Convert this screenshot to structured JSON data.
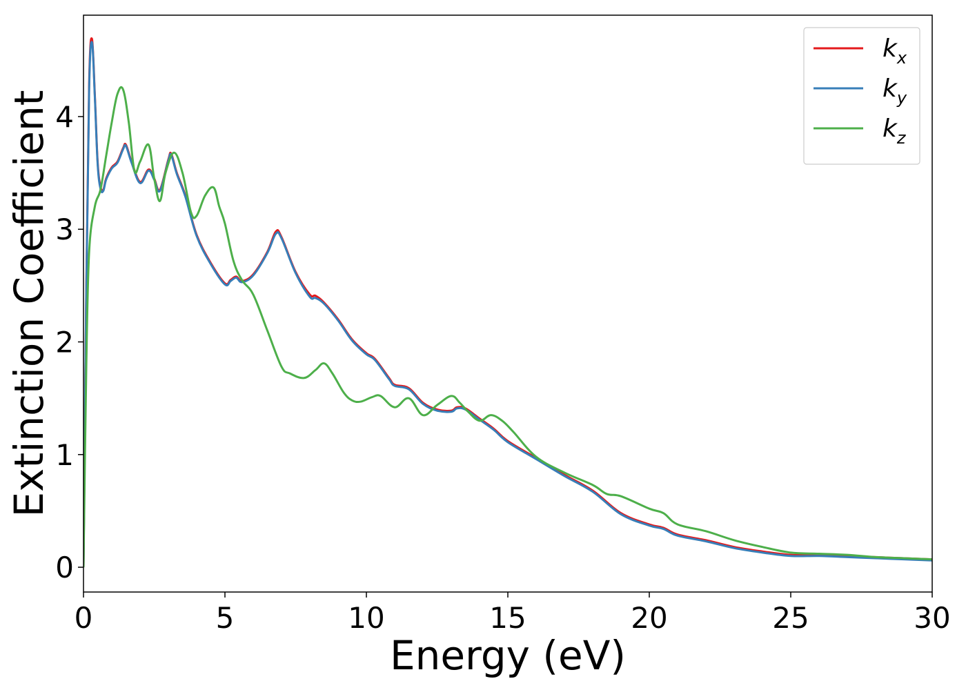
{
  "chart_data": {
    "type": "line",
    "xlabel": "Energy (eV)",
    "ylabel": "Extinction Coefficient",
    "xlim": [
      0,
      30
    ],
    "ylim": [
      -0.22,
      4.9
    ],
    "xticks": [
      0,
      5,
      10,
      15,
      20,
      25,
      30
    ],
    "xtick_labels": [
      "0",
      "5",
      "10",
      "15",
      "20",
      "25",
      "30"
    ],
    "yticks": [
      0,
      1,
      2,
      3,
      4
    ],
    "ytick_labels": [
      "0",
      "1",
      "2",
      "3",
      "4"
    ],
    "grid": false,
    "legend_position": "top-right",
    "series": [
      {
        "name": "k_x",
        "legend_main": "k",
        "legend_sub": "x",
        "color": "#e41a1c",
        "x": [
          0,
          0.1,
          0.2,
          0.3,
          0.4,
          0.5,
          0.6,
          0.7,
          0.8,
          1.0,
          1.2,
          1.4,
          1.5,
          1.7,
          2.0,
          2.3,
          2.5,
          2.7,
          3.0,
          3.1,
          3.3,
          3.6,
          4.0,
          4.5,
          5.0,
          5.2,
          5.4,
          5.6,
          6.0,
          6.5,
          6.8,
          7.0,
          7.5,
          8.0,
          8.2,
          8.5,
          9.0,
          9.5,
          10.0,
          10.3,
          10.8,
          11.0,
          11.5,
          12.0,
          12.5,
          13.0,
          13.2,
          13.5,
          14.0,
          14.5,
          15.0,
          16.0,
          17.0,
          18.0,
          19.0,
          20.0,
          20.5,
          21.0,
          22.0,
          23.0,
          24.0,
          25.0,
          26.0,
          27.0,
          28.0,
          29.0,
          30.0
        ],
        "y": [
          0,
          2.5,
          4.3,
          4.69,
          4.2,
          3.6,
          3.38,
          3.35,
          3.45,
          3.55,
          3.6,
          3.72,
          3.75,
          3.6,
          3.42,
          3.53,
          3.45,
          3.35,
          3.62,
          3.67,
          3.5,
          3.3,
          2.95,
          2.7,
          2.52,
          2.55,
          2.58,
          2.54,
          2.6,
          2.8,
          2.98,
          2.93,
          2.62,
          2.42,
          2.41,
          2.35,
          2.2,
          2.02,
          1.9,
          1.85,
          1.68,
          1.62,
          1.59,
          1.46,
          1.4,
          1.39,
          1.42,
          1.41,
          1.32,
          1.23,
          1.12,
          0.97,
          0.82,
          0.68,
          0.48,
          0.38,
          0.35,
          0.29,
          0.24,
          0.18,
          0.14,
          0.11,
          0.11,
          0.1,
          0.09,
          0.08,
          0.07
        ]
      },
      {
        "name": "k_y",
        "legend_main": "k",
        "legend_sub": "y",
        "color": "#377eb8",
        "x": [
          0,
          0.1,
          0.2,
          0.3,
          0.4,
          0.5,
          0.6,
          0.7,
          0.8,
          1.0,
          1.2,
          1.4,
          1.5,
          1.7,
          2.0,
          2.3,
          2.5,
          2.7,
          3.0,
          3.1,
          3.3,
          3.6,
          4.0,
          4.5,
          5.0,
          5.2,
          5.4,
          5.6,
          6.0,
          6.5,
          6.8,
          7.0,
          7.5,
          8.0,
          8.2,
          8.5,
          9.0,
          9.5,
          10.0,
          10.3,
          10.8,
          11.0,
          11.5,
          12.0,
          12.5,
          13.0,
          13.2,
          13.5,
          14.0,
          14.5,
          15.0,
          16.0,
          17.0,
          18.0,
          19.0,
          20.0,
          20.5,
          21.0,
          22.0,
          23.0,
          24.0,
          25.0,
          26.0,
          27.0,
          28.0,
          29.0,
          30.0
        ],
        "y": [
          0,
          2.45,
          4.25,
          4.66,
          4.18,
          3.58,
          3.36,
          3.34,
          3.44,
          3.54,
          3.59,
          3.71,
          3.74,
          3.59,
          3.41,
          3.52,
          3.44,
          3.34,
          3.61,
          3.66,
          3.49,
          3.29,
          2.94,
          2.69,
          2.51,
          2.54,
          2.57,
          2.53,
          2.59,
          2.79,
          2.96,
          2.92,
          2.61,
          2.4,
          2.39,
          2.34,
          2.19,
          2.01,
          1.89,
          1.84,
          1.67,
          1.61,
          1.58,
          1.45,
          1.39,
          1.38,
          1.41,
          1.4,
          1.31,
          1.22,
          1.11,
          0.96,
          0.81,
          0.67,
          0.47,
          0.37,
          0.34,
          0.28,
          0.23,
          0.17,
          0.13,
          0.1,
          0.1,
          0.09,
          0.08,
          0.07,
          0.06
        ]
      },
      {
        "name": "k_z",
        "legend_main": "k",
        "legend_sub": "z",
        "color": "#4daf4a",
        "x": [
          0,
          0.1,
          0.2,
          0.4,
          0.6,
          0.8,
          1.0,
          1.2,
          1.4,
          1.6,
          1.8,
          2.0,
          2.3,
          2.5,
          2.7,
          2.9,
          3.2,
          3.5,
          3.8,
          4.0,
          4.3,
          4.6,
          4.8,
          5.0,
          5.3,
          5.6,
          6.0,
          6.5,
          7.0,
          7.3,
          7.8,
          8.2,
          8.5,
          8.8,
          9.2,
          9.5,
          9.8,
          10.2,
          10.5,
          11.0,
          11.5,
          12.0,
          12.5,
          13.0,
          13.3,
          13.6,
          14.0,
          14.4,
          14.8,
          15.2,
          16.0,
          17.0,
          18.0,
          18.5,
          19.0,
          20.0,
          20.5,
          21.0,
          22.0,
          23.0,
          24.0,
          25.0,
          26.0,
          27.0,
          28.0,
          29.0,
          30.0
        ],
        "y": [
          0,
          1.8,
          2.8,
          3.2,
          3.35,
          3.65,
          3.95,
          4.2,
          4.24,
          3.95,
          3.52,
          3.6,
          3.75,
          3.45,
          3.25,
          3.5,
          3.68,
          3.5,
          3.15,
          3.12,
          3.3,
          3.37,
          3.2,
          3.05,
          2.72,
          2.55,
          2.42,
          2.1,
          1.78,
          1.72,
          1.68,
          1.75,
          1.81,
          1.72,
          1.55,
          1.48,
          1.47,
          1.51,
          1.52,
          1.42,
          1.5,
          1.35,
          1.44,
          1.52,
          1.46,
          1.38,
          1.3,
          1.35,
          1.3,
          1.2,
          0.98,
          0.84,
          0.73,
          0.65,
          0.63,
          0.52,
          0.48,
          0.38,
          0.32,
          0.24,
          0.18,
          0.13,
          0.12,
          0.11,
          0.09,
          0.08,
          0.07
        ]
      }
    ]
  }
}
